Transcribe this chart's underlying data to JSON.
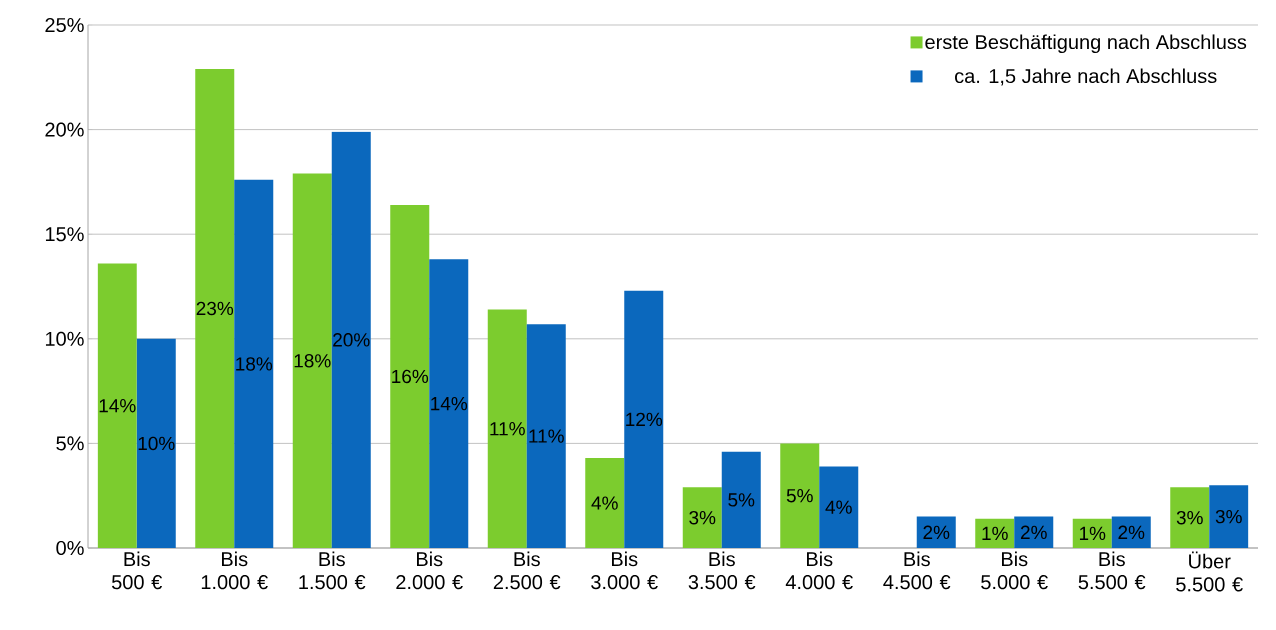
{
  "chart_data": {
    "type": "bar",
    "categories": [
      "Bis 500 €",
      "Bis 1.000 €",
      "Bis 1.500 €",
      "Bis 2.000 €",
      "Bis 2.500 €",
      "Bis 3.000 €",
      "Bis 3.500 €",
      "Bis 4.000 €",
      "Bis 4.500 €",
      "Bis 5.000 €",
      "Bis 5.500 €",
      "Über 5.500 €"
    ],
    "series": [
      {
        "name": "erste Beschäftigung nach Abschluss",
        "color": "#7ccc2e",
        "values": [
          13.6,
          22.9,
          17.9,
          16.4,
          11.4,
          4.3,
          2.9,
          5.0,
          null,
          1.4,
          1.4,
          2.9
        ],
        "value_labels": [
          "14%",
          "23%",
          "18%",
          "16%",
          "11%",
          "4%",
          "3%",
          "5%",
          null,
          "1%",
          "1%",
          "3%"
        ]
      },
      {
        "name": "ca. 1,5 Jahre nach Abschluss",
        "color": "#0b68bd",
        "values": [
          10.0,
          17.6,
          19.9,
          13.8,
          10.7,
          12.3,
          4.6,
          3.9,
          1.5,
          1.5,
          1.5,
          3.0
        ],
        "value_labels": [
          "10%",
          "18%",
          "20%",
          "14%",
          "11%",
          "12%",
          "5%",
          "4%",
          "2%",
          "2%",
          "2%",
          "3%"
        ]
      }
    ],
    "ylim": [
      0,
      25
    ],
    "yticks": [
      {
        "value": 0,
        "label": "0%"
      },
      {
        "value": 5,
        "label": "5%"
      },
      {
        "value": 10,
        "label": "10%"
      },
      {
        "value": 15,
        "label": "15%"
      },
      {
        "value": 20,
        "label": "20%"
      },
      {
        "value": 25,
        "label": "25%"
      }
    ],
    "grid": "y",
    "legend": "top right"
  }
}
